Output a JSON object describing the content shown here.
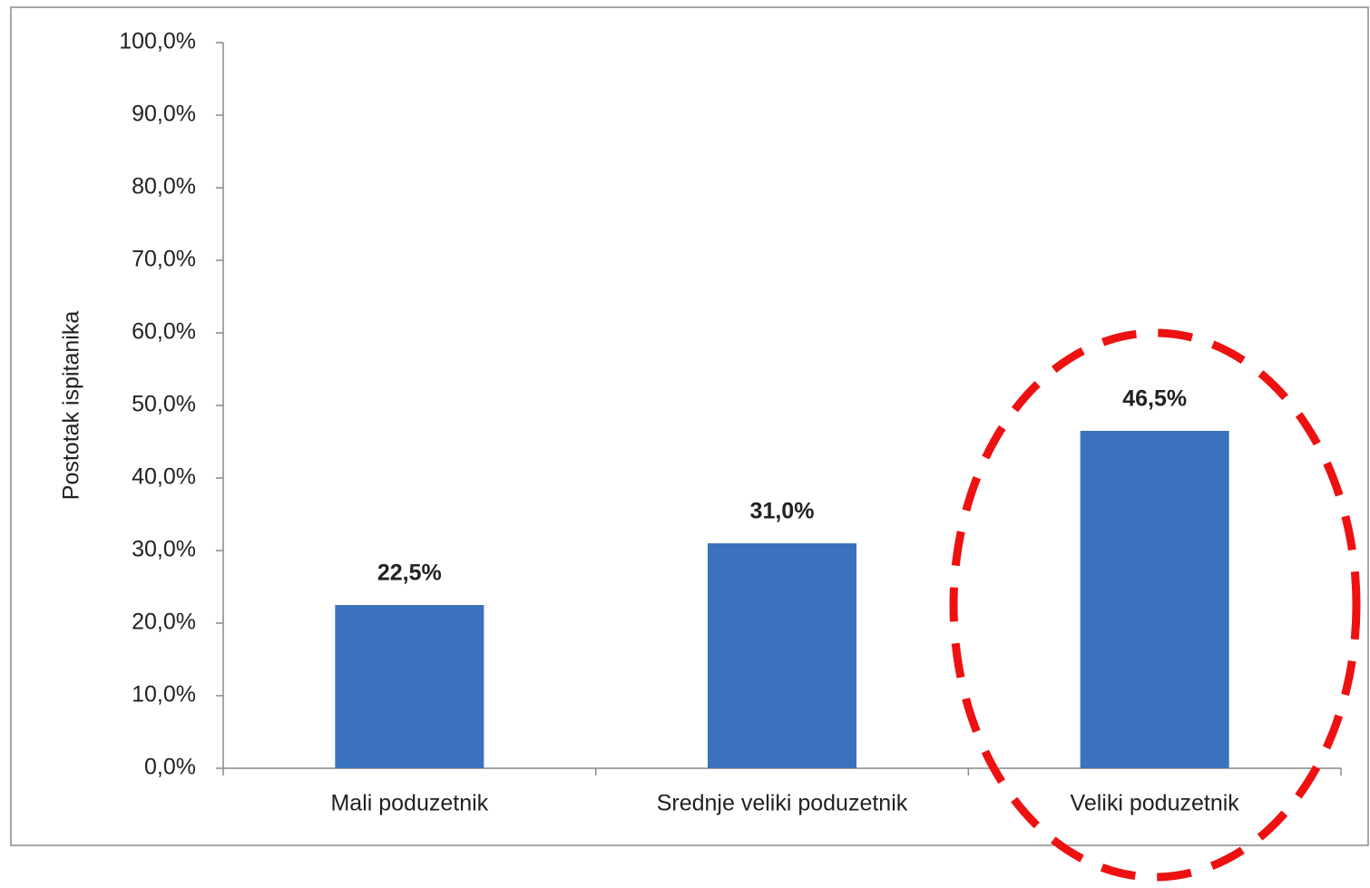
{
  "chart_data": {
    "type": "bar",
    "y_label": "Postotak ispitanika",
    "categories": [
      "Mali poduzetnik",
      "Srednje veliki poduzetnik",
      "Veliki poduzetnik"
    ],
    "values": [
      22.5,
      31.0,
      46.5
    ],
    "value_labels": [
      "22,5%",
      "31,0%",
      "46,5%"
    ],
    "color": "#3a72bd",
    "ylim": [
      0,
      100
    ],
    "yticks": [
      {
        "value": 0,
        "label": "0,0%"
      },
      {
        "value": 10,
        "label": "10,0%"
      },
      {
        "value": 20,
        "label": "20,0%"
      },
      {
        "value": 30,
        "label": "30,0%"
      },
      {
        "value": 40,
        "label": "40,0%"
      },
      {
        "value": 50,
        "label": "50,0%"
      },
      {
        "value": 60,
        "label": "60,0%"
      },
      {
        "value": 70,
        "label": "70,0%"
      },
      {
        "value": 80,
        "label": "80,0%"
      },
      {
        "value": 90,
        "label": "90,0%"
      },
      {
        "value": 100,
        "label": "100,0%"
      }
    ],
    "grid": false
  }
}
